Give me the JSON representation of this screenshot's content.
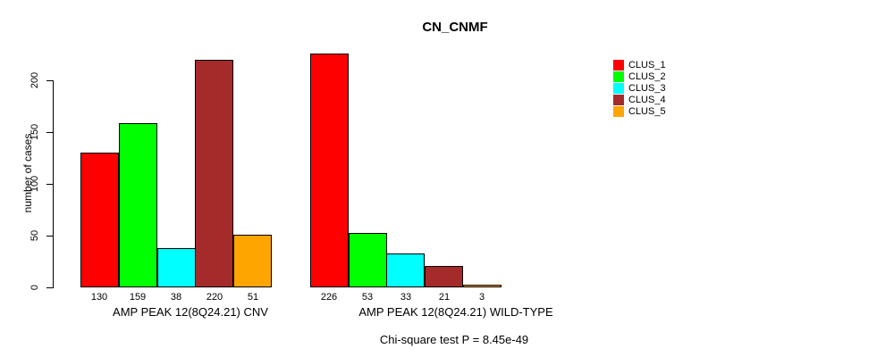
{
  "title": "CN_CNMF",
  "y_axis": {
    "label": "number of cases"
  },
  "footer": {
    "text": "Chi-square test P = 8.45e-49"
  },
  "chart_data": {
    "type": "bar",
    "title": "CN_CNMF",
    "xlabel": "",
    "ylabel": "number of cases",
    "ylim": [
      0,
      230
    ],
    "yticks": [
      0,
      50,
      100,
      150,
      200
    ],
    "grid": false,
    "legend_position": "right",
    "bar_value_labels": true,
    "categories": [
      "AMP PEAK 12(8Q24.21) CNV",
      "AMP PEAK 12(8Q24.21) WILD-TYPE"
    ],
    "series": [
      {
        "name": "CLUS_1",
        "color": "#FF0000",
        "values": [
          130,
          226
        ]
      },
      {
        "name": "CLUS_2",
        "color": "#00FF00",
        "values": [
          159,
          53
        ]
      },
      {
        "name": "CLUS_3",
        "color": "#00FFFF",
        "values": [
          38,
          33
        ]
      },
      {
        "name": "CLUS_4",
        "color": "#A52A2A",
        "values": [
          220,
          21
        ]
      },
      {
        "name": "CLUS_5",
        "color": "#FFA500",
        "values": [
          51,
          3
        ]
      }
    ],
    "annotation": "Chi-square test P = 8.45e-49"
  }
}
